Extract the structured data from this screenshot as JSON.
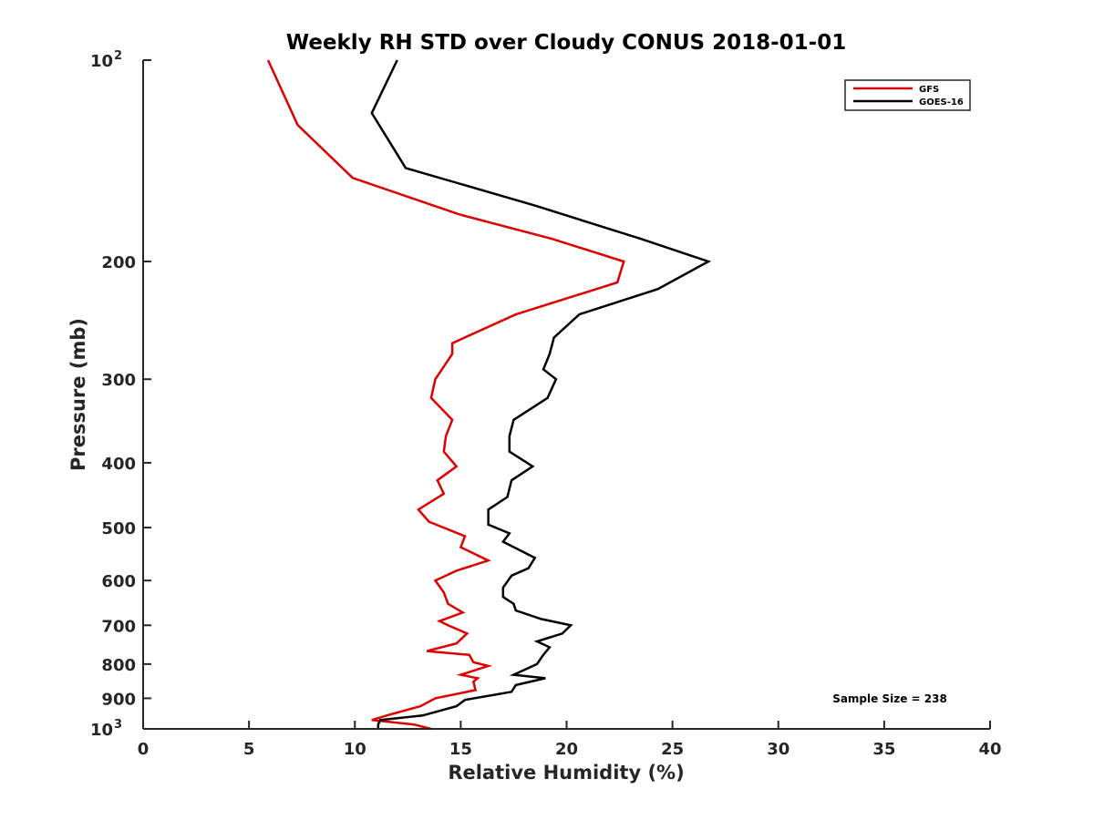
{
  "chart_data": {
    "type": "line",
    "title": "Weekly RH STD over Cloudy CONUS 2018-01-01",
    "xlabel": "Relative Humidity (%)",
    "ylabel": "Pressure (mb)",
    "xlim": [
      0,
      40
    ],
    "ylim": [
      100,
      1000
    ],
    "yscale": "log",
    "y_reversed": true,
    "x_ticks": [
      0,
      5,
      10,
      15,
      20,
      25,
      30,
      35,
      40
    ],
    "y_ticks": [
      {
        "value": 100,
        "base": "10",
        "exp": "2"
      },
      {
        "value": 200,
        "label": "200"
      },
      {
        "value": 300,
        "label": "300"
      },
      {
        "value": 400,
        "label": "400"
      },
      {
        "value": 500,
        "label": "500"
      },
      {
        "value": 600,
        "label": "600"
      },
      {
        "value": 700,
        "label": "700"
      },
      {
        "value": 800,
        "label": "800"
      },
      {
        "value": 900,
        "label": "900"
      },
      {
        "value": 1000,
        "base": "10",
        "exp": "3"
      }
    ],
    "legend_position": "top-right",
    "annotation": "Sample Size = 238",
    "series": [
      {
        "name": "GFS",
        "color": "#dd0000",
        "points": [
          [
            5.9,
            100
          ],
          [
            7.3,
            125
          ],
          [
            9.9,
            150
          ],
          [
            14.9,
            170
          ],
          [
            19.3,
            185
          ],
          [
            22.7,
            200
          ],
          [
            22.4,
            215
          ],
          [
            17.6,
            240
          ],
          [
            14.6,
            265
          ],
          [
            14.6,
            275
          ],
          [
            13.8,
            300
          ],
          [
            13.6,
            320
          ],
          [
            14.6,
            345
          ],
          [
            14.3,
            365
          ],
          [
            14.2,
            385
          ],
          [
            14.8,
            405
          ],
          [
            13.9,
            425
          ],
          [
            14.2,
            445
          ],
          [
            13.0,
            470
          ],
          [
            13.5,
            490
          ],
          [
            15.2,
            515
          ],
          [
            15.0,
            535
          ],
          [
            16.3,
            560
          ],
          [
            14.8,
            580
          ],
          [
            13.8,
            600
          ],
          [
            14.2,
            625
          ],
          [
            14.4,
            650
          ],
          [
            15.1,
            670
          ],
          [
            14.0,
            690
          ],
          [
            14.4,
            700
          ],
          [
            15.3,
            720
          ],
          [
            14.8,
            745
          ],
          [
            13.4,
            765
          ],
          [
            15.4,
            775
          ],
          [
            15.6,
            795
          ],
          [
            16.3,
            805
          ],
          [
            15.0,
            830
          ],
          [
            15.8,
            840
          ],
          [
            15.6,
            850
          ],
          [
            15.7,
            875
          ],
          [
            13.8,
            900
          ],
          [
            13.1,
            925
          ],
          [
            11.5,
            955
          ],
          [
            10.8,
            970
          ],
          [
            12.8,
            985
          ],
          [
            13.6,
            1000
          ]
        ]
      },
      {
        "name": "GOES-16",
        "color": "#000000",
        "points": [
          [
            12.0,
            100
          ],
          [
            10.8,
            120
          ],
          [
            12.4,
            145
          ],
          [
            18.5,
            165
          ],
          [
            23.5,
            185
          ],
          [
            26.7,
            200
          ],
          [
            24.3,
            220
          ],
          [
            20.6,
            240
          ],
          [
            19.4,
            260
          ],
          [
            19.2,
            275
          ],
          [
            18.9,
            290
          ],
          [
            19.5,
            300
          ],
          [
            19.1,
            320
          ],
          [
            17.5,
            345
          ],
          [
            17.3,
            365
          ],
          [
            17.3,
            385
          ],
          [
            18.4,
            405
          ],
          [
            17.4,
            425
          ],
          [
            17.2,
            450
          ],
          [
            16.3,
            470
          ],
          [
            16.3,
            495
          ],
          [
            17.3,
            510
          ],
          [
            17.0,
            525
          ],
          [
            18.5,
            555
          ],
          [
            18.2,
            575
          ],
          [
            17.4,
            590
          ],
          [
            17.0,
            615
          ],
          [
            17.0,
            635
          ],
          [
            17.5,
            650
          ],
          [
            17.6,
            665
          ],
          [
            18.8,
            685
          ],
          [
            20.2,
            700
          ],
          [
            19.8,
            720
          ],
          [
            18.6,
            740
          ],
          [
            19.2,
            755
          ],
          [
            18.9,
            775
          ],
          [
            18.6,
            800
          ],
          [
            17.5,
            830
          ],
          [
            19.0,
            840
          ],
          [
            17.6,
            860
          ],
          [
            17.4,
            880
          ],
          [
            15.2,
            905
          ],
          [
            14.8,
            925
          ],
          [
            13.2,
            955
          ],
          [
            11.2,
            970
          ],
          [
            11.1,
            985
          ],
          [
            11.1,
            1000
          ]
        ]
      }
    ]
  }
}
